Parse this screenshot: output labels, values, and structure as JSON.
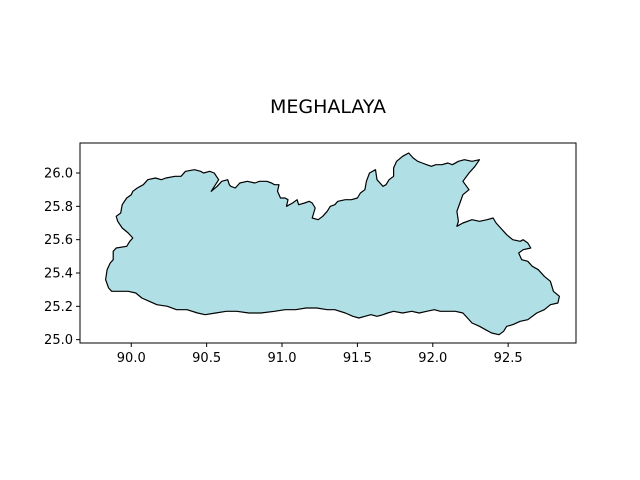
{
  "chart_data": {
    "type": "map",
    "title": "MEGHALAYA",
    "xlim": [
      89.66,
      92.95
    ],
    "ylim": [
      24.98,
      26.18
    ],
    "x_ticks": [
      {
        "value": 90.0,
        "label": "90.0"
      },
      {
        "value": 90.5,
        "label": "90.5"
      },
      {
        "value": 91.0,
        "label": "91.0"
      },
      {
        "value": 91.5,
        "label": "91.5"
      },
      {
        "value": 92.0,
        "label": "92.0"
      },
      {
        "value": 92.5,
        "label": "92.5"
      }
    ],
    "y_ticks": [
      {
        "value": 25.0,
        "label": "25.0"
      },
      {
        "value": 25.2,
        "label": "25.2"
      },
      {
        "value": 25.4,
        "label": "25.4"
      },
      {
        "value": 25.6,
        "label": "25.6"
      },
      {
        "value": 25.8,
        "label": "25.8"
      },
      {
        "value": 26.0,
        "label": "26.0"
      }
    ],
    "fill_color": "#b0dfe5",
    "edge_color": "#000000",
    "boundary": [
      [
        89.85,
        25.31
      ],
      [
        89.83,
        25.36
      ],
      [
        89.84,
        25.42
      ],
      [
        89.86,
        25.46
      ],
      [
        89.88,
        25.48
      ],
      [
        89.88,
        25.53
      ],
      [
        89.9,
        25.55
      ],
      [
        89.97,
        25.56
      ],
      [
        89.99,
        25.59
      ],
      [
        90.01,
        25.61
      ],
      [
        89.98,
        25.64
      ],
      [
        89.94,
        25.67
      ],
      [
        89.91,
        25.71
      ],
      [
        89.9,
        25.74
      ],
      [
        89.93,
        25.76
      ],
      [
        89.94,
        25.81
      ],
      [
        89.97,
        25.85
      ],
      [
        90.0,
        25.87
      ],
      [
        90.01,
        25.89
      ],
      [
        90.04,
        25.91
      ],
      [
        90.08,
        25.93
      ],
      [
        90.11,
        25.96
      ],
      [
        90.16,
        25.97
      ],
      [
        90.2,
        25.96
      ],
      [
        90.23,
        25.97
      ],
      [
        90.29,
        25.98
      ],
      [
        90.33,
        25.98
      ],
      [
        90.36,
        26.01
      ],
      [
        90.42,
        26.02
      ],
      [
        90.46,
        26.01
      ],
      [
        90.48,
        26.0
      ],
      [
        90.52,
        26.01
      ],
      [
        90.55,
        26.0
      ],
      [
        90.58,
        25.96
      ],
      [
        90.53,
        25.89
      ],
      [
        90.57,
        25.92
      ],
      [
        90.6,
        25.95
      ],
      [
        90.64,
        25.96
      ],
      [
        90.65,
        25.93
      ],
      [
        90.66,
        25.92
      ],
      [
        90.69,
        25.91
      ],
      [
        90.72,
        25.94
      ],
      [
        90.77,
        25.95
      ],
      [
        90.82,
        25.94
      ],
      [
        90.85,
        25.95
      ],
      [
        90.9,
        25.95
      ],
      [
        90.93,
        25.94
      ],
      [
        90.95,
        25.93
      ],
      [
        90.98,
        25.93
      ],
      [
        90.97,
        25.89
      ],
      [
        90.99,
        25.85
      ],
      [
        91.02,
        25.85
      ],
      [
        91.04,
        25.84
      ],
      [
        91.03,
        25.8
      ],
      [
        91.07,
        25.82
      ],
      [
        91.1,
        25.84
      ],
      [
        91.11,
        25.81
      ],
      [
        91.15,
        25.82
      ],
      [
        91.18,
        25.83
      ],
      [
        91.2,
        25.82
      ],
      [
        91.22,
        25.79
      ],
      [
        91.2,
        25.73
      ],
      [
        91.24,
        25.72
      ],
      [
        91.27,
        25.74
      ],
      [
        91.3,
        25.77
      ],
      [
        91.32,
        25.8
      ],
      [
        91.35,
        25.81
      ],
      [
        91.37,
        25.83
      ],
      [
        91.42,
        25.84
      ],
      [
        91.46,
        25.84
      ],
      [
        91.5,
        25.85
      ],
      [
        91.52,
        25.88
      ],
      [
        91.55,
        25.9
      ],
      [
        91.56,
        25.95
      ],
      [
        91.58,
        26.0
      ],
      [
        91.62,
        26.02
      ],
      [
        91.63,
        25.96
      ],
      [
        91.65,
        25.94
      ],
      [
        91.67,
        25.92
      ],
      [
        91.69,
        25.93
      ],
      [
        91.71,
        25.96
      ],
      [
        91.74,
        25.98
      ],
      [
        91.74,
        26.03
      ],
      [
        91.76,
        26.07
      ],
      [
        91.8,
        26.1
      ],
      [
        91.84,
        26.12
      ],
      [
        91.87,
        26.09
      ],
      [
        91.9,
        26.07
      ],
      [
        91.93,
        26.06
      ],
      [
        91.96,
        26.05
      ],
      [
        91.99,
        26.04
      ],
      [
        92.02,
        26.05
      ],
      [
        92.06,
        26.05
      ],
      [
        92.1,
        26.06
      ],
      [
        92.13,
        26.05
      ],
      [
        92.17,
        26.07
      ],
      [
        92.21,
        26.08
      ],
      [
        92.26,
        26.07
      ],
      [
        92.31,
        26.08
      ],
      [
        92.28,
        26.04
      ],
      [
        92.24,
        26.0
      ],
      [
        92.2,
        25.95
      ],
      [
        92.24,
        25.9
      ],
      [
        92.2,
        25.87
      ],
      [
        92.18,
        25.82
      ],
      [
        92.16,
        25.77
      ],
      [
        92.17,
        25.71
      ],
      [
        92.16,
        25.68
      ],
      [
        92.2,
        25.7
      ],
      [
        92.26,
        25.72
      ],
      [
        92.31,
        25.71
      ],
      [
        92.36,
        25.72
      ],
      [
        92.4,
        25.73
      ],
      [
        92.42,
        25.7
      ],
      [
        92.45,
        25.67
      ],
      [
        92.49,
        25.63
      ],
      [
        92.53,
        25.6
      ],
      [
        92.58,
        25.59
      ],
      [
        92.6,
        25.6
      ],
      [
        92.63,
        25.58
      ],
      [
        92.65,
        25.55
      ],
      [
        92.6,
        25.54
      ],
      [
        92.57,
        25.52
      ],
      [
        92.59,
        25.48
      ],
      [
        92.63,
        25.47
      ],
      [
        92.66,
        25.44
      ],
      [
        92.7,
        25.42
      ],
      [
        92.74,
        25.38
      ],
      [
        92.78,
        25.35
      ],
      [
        92.8,
        25.29
      ],
      [
        92.84,
        25.26
      ],
      [
        92.83,
        25.22
      ],
      [
        92.78,
        25.21
      ],
      [
        92.74,
        25.18
      ],
      [
        92.69,
        25.16
      ],
      [
        92.63,
        25.12
      ],
      [
        92.58,
        25.11
      ],
      [
        92.53,
        25.09
      ],
      [
        92.49,
        25.08
      ],
      [
        92.47,
        25.05
      ],
      [
        92.44,
        25.03
      ],
      [
        92.39,
        25.04
      ],
      [
        92.35,
        25.06
      ],
      [
        92.31,
        25.08
      ],
      [
        92.26,
        25.1
      ],
      [
        92.23,
        25.13
      ],
      [
        92.2,
        25.16
      ],
      [
        92.15,
        25.17
      ],
      [
        92.1,
        25.17
      ],
      [
        92.05,
        25.17
      ],
      [
        92.01,
        25.18
      ],
      [
        91.96,
        25.17
      ],
      [
        91.91,
        25.16
      ],
      [
        91.86,
        25.17
      ],
      [
        91.8,
        25.16
      ],
      [
        91.74,
        25.17
      ],
      [
        91.7,
        25.16
      ],
      [
        91.67,
        25.15
      ],
      [
        91.63,
        25.14
      ],
      [
        91.59,
        25.15
      ],
      [
        91.55,
        25.14
      ],
      [
        91.51,
        25.13
      ],
      [
        91.47,
        25.14
      ],
      [
        91.42,
        25.16
      ],
      [
        91.35,
        25.18
      ],
      [
        91.3,
        25.18
      ],
      [
        91.23,
        25.19
      ],
      [
        91.16,
        25.19
      ],
      [
        91.09,
        25.18
      ],
      [
        91.02,
        25.18
      ],
      [
        90.95,
        25.17
      ],
      [
        90.86,
        25.16
      ],
      [
        90.78,
        25.16
      ],
      [
        90.7,
        25.17
      ],
      [
        90.63,
        25.17
      ],
      [
        90.56,
        25.16
      ],
      [
        90.49,
        25.15
      ],
      [
        90.44,
        25.16
      ],
      [
        90.37,
        25.18
      ],
      [
        90.3,
        25.18
      ],
      [
        90.24,
        25.2
      ],
      [
        90.17,
        25.21
      ],
      [
        90.12,
        25.23
      ],
      [
        90.07,
        25.25
      ],
      [
        90.03,
        25.28
      ],
      [
        89.98,
        25.29
      ],
      [
        89.92,
        25.29
      ],
      [
        89.87,
        25.29
      ],
      [
        89.85,
        25.31
      ]
    ]
  }
}
